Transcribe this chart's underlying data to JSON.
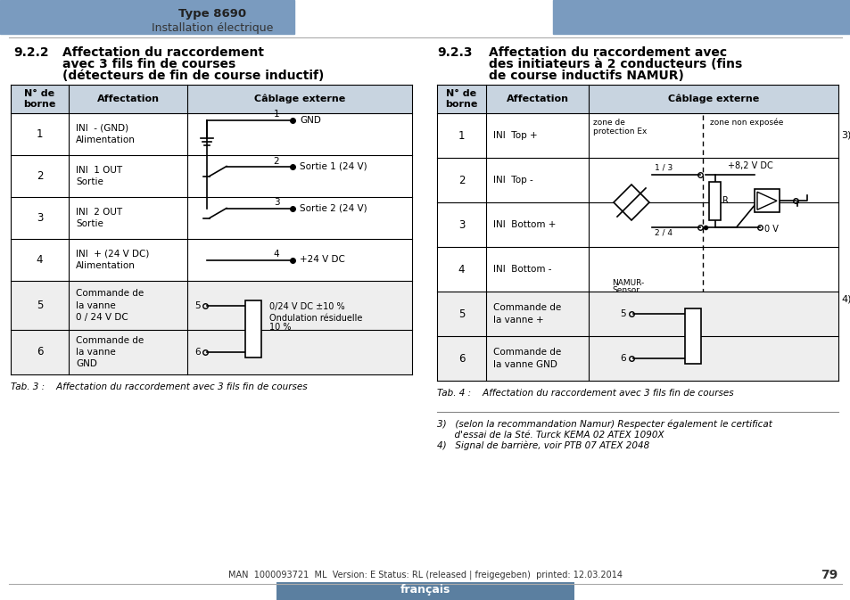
{
  "bg_color": "#ffffff",
  "header_bar_color": "#7a9bbf",
  "table_header_bg": "#c8d4e0",
  "page_title": "Type 8690",
  "page_subtitle": "Installation électrique",
  "footer_text": "MAN  1000093721  ML  Version: E Status: RL (released | freigegeben)  printed: 12.03.2014",
  "footer_lang": "français",
  "footer_page": "79",
  "tab3_caption": "Tab. 3 :    Affectation du raccordement avec 3 fils fin de courses",
  "tab4_caption": "Tab. 4 :    Affectation du raccordement avec 3 fils fin de courses",
  "note3": "3)   (selon la recommandation Namur) Respecter également le certificat",
  "note3b": "      d'essai de la Sté. Turck KEMA 02 ATEX 1090X",
  "note4": "4)   Signal de barrière, voir PTB 07 ATEX 2048",
  "title_left_line1": "Affectation du raccordement",
  "title_left_line2": "avec 3 fils fin de courses",
  "title_left_line3": "(détecteurs de fin de course inductif)",
  "title_right_line1": "Affectation du raccordement avec",
  "title_right_line2": "des initiateurs à 2 conducteurs (fins",
  "title_right_line3": "de course inductifs NAMUR)"
}
